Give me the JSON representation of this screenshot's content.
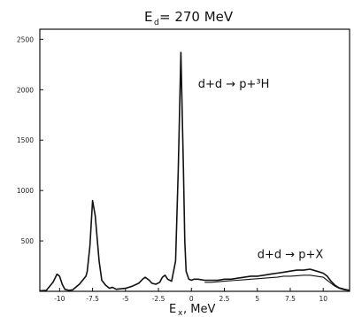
{
  "chart_data": {
    "type": "line",
    "title": {
      "main": "E",
      "sub": "d",
      "rest": " = 270 MeV"
    },
    "xlabel": {
      "main": "E",
      "sub": "x",
      "rest": ", MeV"
    },
    "ylabel": "",
    "xlim": [
      -11.5,
      12
    ],
    "ylim": [
      0,
      2600
    ],
    "x_ticks": [
      -10,
      -7.5,
      -5,
      -2.5,
      0,
      2.5,
      5,
      7.5,
      10
    ],
    "x_tick_labels": [
      "-10",
      "-7.5",
      "-5",
      "-2.5",
      "0",
      "2.5",
      "5",
      "7.5",
      "10"
    ],
    "y_ticks": [
      500,
      1000,
      1500,
      2000,
      2500
    ],
    "y_tick_labels": [
      "500",
      "1000",
      "1500",
      "2000",
      "2500"
    ],
    "annotations": [
      {
        "text": "d+d → p+³H",
        "x": 0.5,
        "y": 2020
      },
      {
        "text": "d+d → p+X",
        "x": 5.0,
        "y": 330
      }
    ],
    "series": [
      {
        "x": [
          -11.5,
          -11,
          -10.5,
          -10.2,
          -10,
          -9.8,
          -9.6,
          -9.3,
          -9,
          -8.5,
          -8,
          -7.9,
          -7.7,
          -7.5,
          -7.3,
          -7,
          -6.8,
          -6.5,
          -6.2,
          -6,
          -5.7,
          -5.4,
          -5,
          -4.5,
          -4,
          -3.7,
          -3.5,
          -3.2,
          -3,
          -2.7,
          -2.4,
          -2.2,
          -2,
          -1.8,
          -1.5,
          -1.2,
          -1,
          -0.8,
          -0.6,
          -0.5,
          -0.4,
          -0.2,
          0,
          0.2,
          0.5,
          1,
          1.5,
          2,
          2.5,
          3,
          3.5,
          4,
          4.5,
          5,
          5.5,
          6,
          6.5,
          7,
          7.5,
          8,
          8.5,
          9,
          9.5,
          10,
          10.3,
          10.6,
          10.9,
          11.2,
          11.6,
          12
        ],
        "y": [
          5,
          10,
          90,
          170,
          150,
          70,
          20,
          10,
          15,
          70,
          150,
          200,
          450,
          900,
          750,
          300,
          110,
          60,
          30,
          40,
          20,
          25,
          30,
          50,
          80,
          120,
          140,
          110,
          80,
          70,
          90,
          140,
          160,
          120,
          100,
          300,
          1200,
          2370,
          1200,
          500,
          200,
          120,
          110,
          120,
          120,
          110,
          110,
          110,
          120,
          120,
          130,
          140,
          150,
          150,
          160,
          170,
          180,
          190,
          200,
          210,
          210,
          220,
          200,
          180,
          150,
          100,
          60,
          35,
          20,
          10
        ]
      },
      {
        "x": [
          1,
          1.5,
          2,
          2.5,
          3,
          3.5,
          4,
          4.5,
          5,
          5.5,
          6,
          6.5,
          7,
          7.5,
          8,
          8.5,
          9,
          9.5,
          10,
          10.3,
          10.6,
          10.9,
          11.2,
          11.6,
          12
        ],
        "y": [
          90,
          90,
          95,
          100,
          105,
          110,
          115,
          120,
          125,
          130,
          135,
          140,
          150,
          150,
          155,
          160,
          160,
          150,
          140,
          110,
          80,
          50,
          30,
          15,
          8
        ]
      }
    ]
  }
}
